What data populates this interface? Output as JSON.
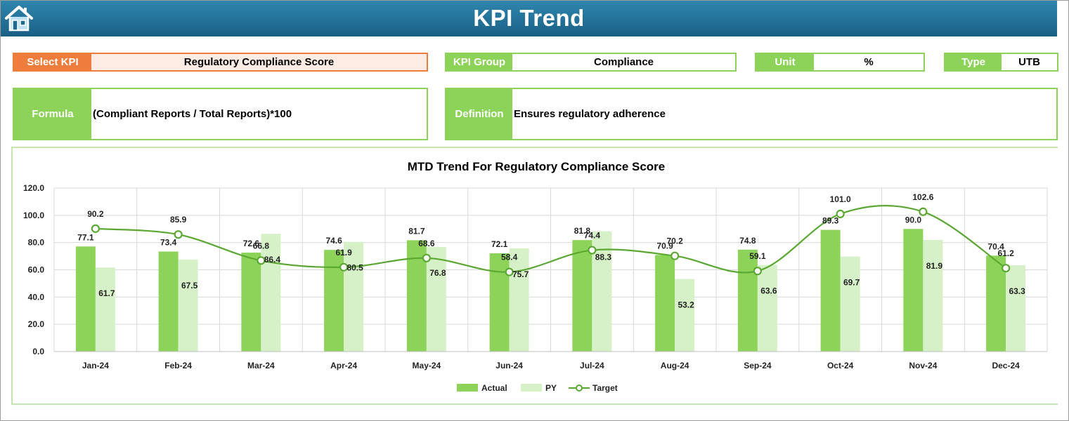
{
  "header": {
    "title": "KPI Trend",
    "home_icon": "home-icon"
  },
  "fields": {
    "select_kpi": {
      "label": "Select KPI",
      "value": "Regulatory Compliance Score"
    },
    "kpi_group": {
      "label": "KPI Group",
      "value": "Compliance"
    },
    "unit": {
      "label": "Unit",
      "value": "%"
    },
    "type": {
      "label": "Type",
      "value": "UTB"
    },
    "formula": {
      "label": "Formula",
      "value": "(Compliant Reports / Total Reports)*100"
    },
    "definition": {
      "label": "Definition",
      "value": "Ensures regulatory adherence"
    }
  },
  "colors": {
    "accent_green": "#8dd35a",
    "orange": "#ee7c3c",
    "actual": "#8dd35a",
    "py": "#d6f0c8",
    "target": "#5aa832",
    "header": "#1f6a92"
  },
  "chart_data": {
    "type": "bar",
    "title": "MTD Trend For Regulatory Compliance Score",
    "categories": [
      "Jan-24",
      "Feb-24",
      "Mar-24",
      "Apr-24",
      "May-24",
      "Jun-24",
      "Jul-24",
      "Aug-24",
      "Sep-24",
      "Oct-24",
      "Nov-24",
      "Dec-24"
    ],
    "ylim": [
      0,
      120
    ],
    "yticks": [
      "0.0",
      "20.0",
      "40.0",
      "60.0",
      "80.0",
      "100.0",
      "120.0"
    ],
    "grid": true,
    "legend": "bottom",
    "series": [
      {
        "name": "Actual",
        "type": "bar",
        "values": [
          77.1,
          73.4,
          72.6,
          74.6,
          81.7,
          72.1,
          81.8,
          70.9,
          74.8,
          89.3,
          90.0,
          70.4
        ]
      },
      {
        "name": "PY",
        "type": "bar",
        "values": [
          61.7,
          67.5,
          86.4,
          80.5,
          76.8,
          75.7,
          88.3,
          53.2,
          63.6,
          69.7,
          81.9,
          63.3
        ]
      },
      {
        "name": "Target",
        "type": "line",
        "values": [
          90.2,
          85.9,
          66.8,
          61.9,
          68.6,
          58.4,
          74.4,
          70.2,
          59.1,
          101.0,
          102.6,
          61.2
        ]
      }
    ]
  }
}
